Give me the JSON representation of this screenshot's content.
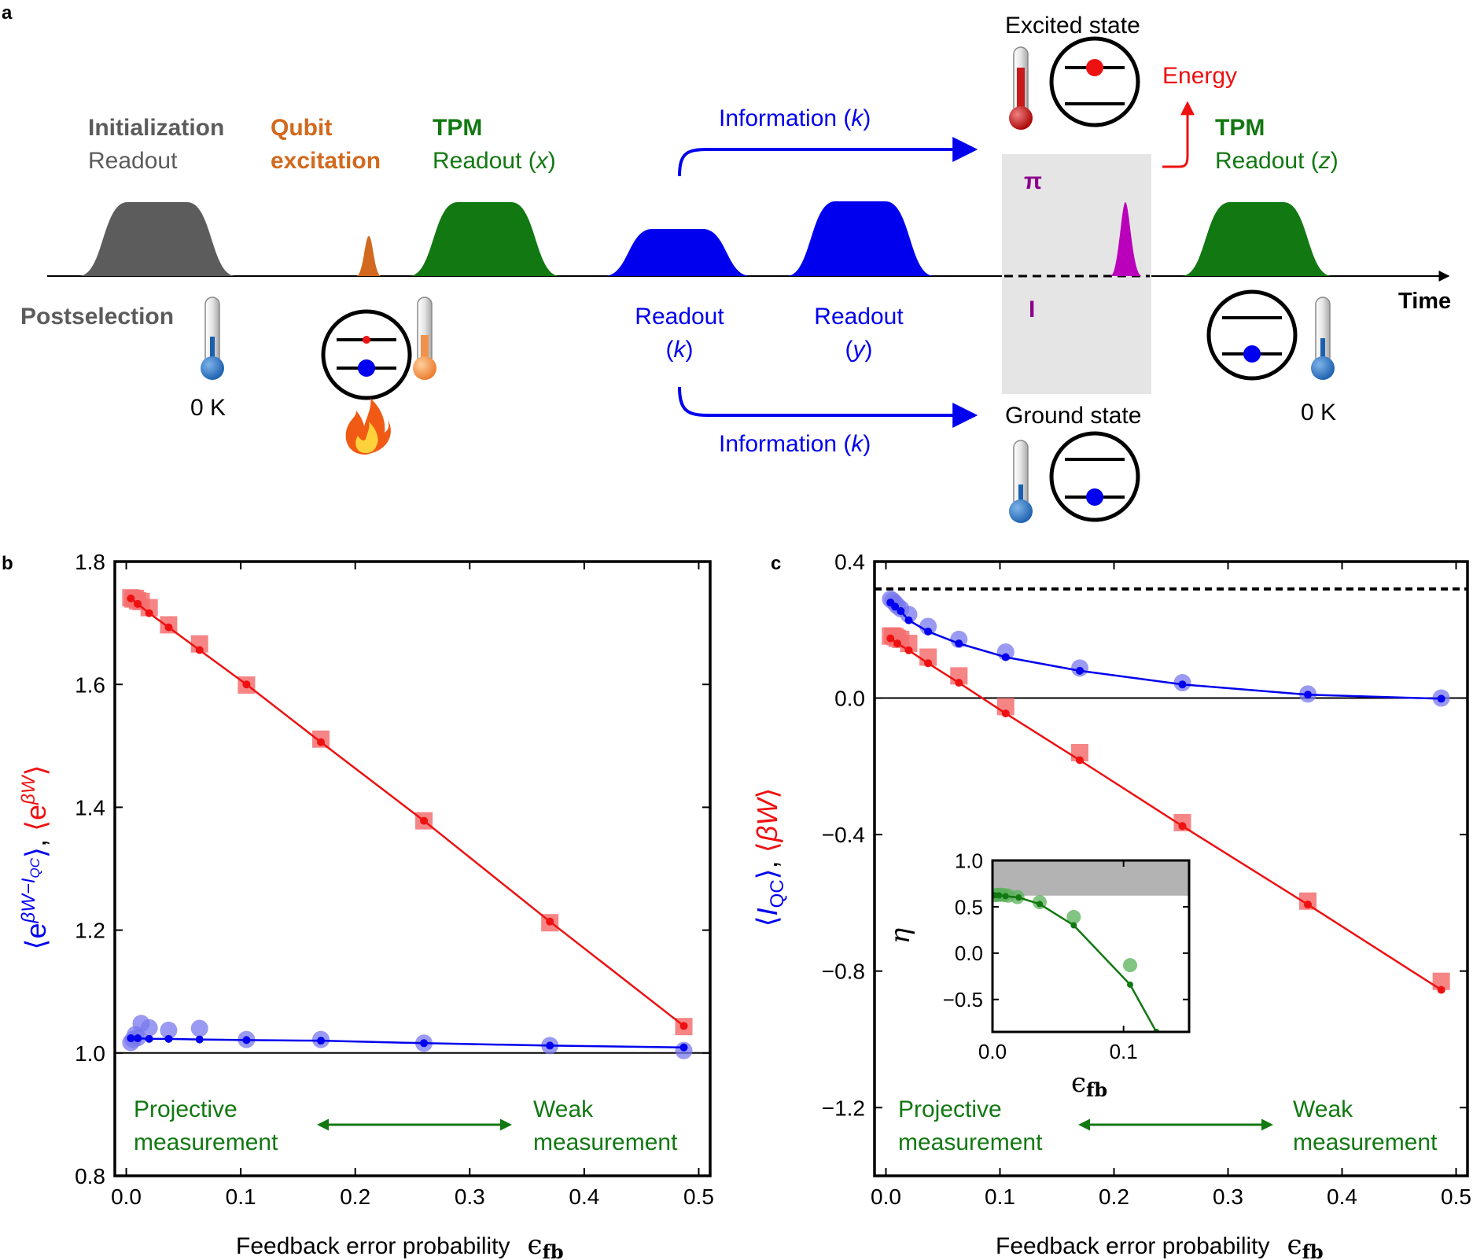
{
  "panel_labels": {
    "a": "a",
    "b": "b",
    "c": "c"
  },
  "colors": {
    "gray": "#5c5c5c",
    "orange": "#d2691e",
    "green": "#127812",
    "blue": "#0000ee",
    "red": "#ee1111",
    "purple": "#8b008b",
    "magenta": "#bb00bb",
    "red_marker": "#f47070",
    "blue_marker": "#7878ee",
    "green_marker": "#58b058"
  },
  "schematic": {
    "init": {
      "bold": "Initialization",
      "sub": "Readout"
    },
    "excite": {
      "line1": "Qubit",
      "line2": "excitation"
    },
    "tpm1": {
      "bold": "TPM",
      "sub": "Readout ",
      "var": "x"
    },
    "tpm2": {
      "bold": "TPM",
      "sub": "Readout ",
      "var": "z"
    },
    "info_top": {
      "text": "Information ",
      "var": "k"
    },
    "info_bottom": {
      "text": "Information ",
      "var": "k"
    },
    "readout_k": {
      "line1": "Readout",
      "var": "k"
    },
    "readout_y": {
      "line1": "Readout",
      "var": "y"
    },
    "excited_state": "Excited state",
    "ground_state": "Ground state",
    "energy": "Energy",
    "pi": "π",
    "identity": "I",
    "time": "Time",
    "postselection": "Postselection",
    "temp_left": "0 K",
    "temp_right": "0 K"
  },
  "chart_data": [
    {
      "id": "b",
      "type": "scatter",
      "xlabel": "Feedback error probability",
      "xlabel_symbol": "ϵ",
      "xlabel_sub": "fb",
      "ylabel": "⟨e^{βW−I_QC}⟩, ⟨e^{βW}⟩",
      "xlim": [
        -0.01,
        0.51
      ],
      "ylim": [
        0.8,
        1.8
      ],
      "xticks": [
        0.0,
        0.1,
        0.2,
        0.3,
        0.4,
        0.5
      ],
      "xtick_labels": [
        "0.0",
        "0.1",
        "0.2",
        "0.3",
        "0.4",
        "0.5"
      ],
      "yticks": [
        0.8,
        1.0,
        1.2,
        1.4,
        1.6,
        1.8
      ],
      "ytick_labels": [
        "0.8",
        "1.0",
        "1.2",
        "1.4",
        "1.6",
        "1.8"
      ],
      "hline": 1.0,
      "annotations": {
        "left1": "Projective",
        "left2": "measurement",
        "right1": "Weak",
        "right2": "measurement"
      },
      "series": [
        {
          "name": "⟨e^{βW}⟩ experiment",
          "color": "red",
          "marker": "square",
          "x": [
            0.004,
            0.006,
            0.008,
            0.01,
            0.013,
            0.02,
            0.037,
            0.064,
            0.105,
            0.17,
            0.26,
            0.37,
            0.487
          ],
          "y": [
            1.741,
            1.739,
            1.74,
            1.736,
            1.735,
            1.725,
            1.697,
            1.666,
            1.599,
            1.511,
            1.378,
            1.212,
            1.043
          ]
        },
        {
          "name": "⟨e^{βW}⟩ theory",
          "color": "red",
          "marker": "line-dot",
          "x": [
            0.004,
            0.01,
            0.02,
            0.037,
            0.064,
            0.105,
            0.17,
            0.26,
            0.37,
            0.487
          ],
          "y": [
            1.74,
            1.731,
            1.716,
            1.693,
            1.656,
            1.6,
            1.506,
            1.378,
            1.214,
            1.044
          ]
        },
        {
          "name": "⟨e^{βW−I_QC}⟩ experiment",
          "color": "blue",
          "marker": "circle",
          "x": [
            0.004,
            0.006,
            0.008,
            0.01,
            0.013,
            0.02,
            0.037,
            0.064,
            0.105,
            0.17,
            0.26,
            0.37,
            0.487
          ],
          "y": [
            1.017,
            1.022,
            1.03,
            1.025,
            1.048,
            1.041,
            1.037,
            1.04,
            1.022,
            1.022,
            1.016,
            1.012,
            1.004
          ]
        },
        {
          "name": "⟨e^{βW−I_QC}⟩ theory",
          "color": "blue",
          "marker": "line-dot",
          "x": [
            0.004,
            0.01,
            0.02,
            0.037,
            0.064,
            0.105,
            0.17,
            0.26,
            0.37,
            0.487
          ],
          "y": [
            1.024,
            1.024,
            1.023,
            1.023,
            1.022,
            1.021,
            1.02,
            1.016,
            1.012,
            1.009
          ]
        }
      ]
    },
    {
      "id": "c",
      "type": "scatter",
      "xlabel": "Feedback error probability",
      "xlabel_symbol": "ϵ",
      "xlabel_sub": "fb",
      "ylabel": "⟨I_QC⟩, ⟨βW⟩",
      "xlim": [
        -0.01,
        0.51
      ],
      "ylim": [
        -1.4,
        0.4
      ],
      "xticks": [
        0.0,
        0.1,
        0.2,
        0.3,
        0.4,
        0.5
      ],
      "xtick_labels": [
        "0.0",
        "0.1",
        "0.2",
        "0.3",
        "0.4",
        "0.5"
      ],
      "yticks": [
        0.4,
        0.0,
        -0.4,
        -0.8,
        -1.2
      ],
      "ytick_labels": [
        "0.4",
        "0.0",
        "−0.4",
        "−0.8",
        "−1.2"
      ],
      "hline": 0.0,
      "dashed_hline": 0.32,
      "annotations": {
        "left1": "Projective",
        "left2": "measurement",
        "right1": "Weak",
        "right2": "measurement"
      },
      "series": [
        {
          "name": "⟨βW⟩ experiment",
          "color": "red",
          "marker": "square",
          "x": [
            0.004,
            0.006,
            0.008,
            0.01,
            0.013,
            0.02,
            0.037,
            0.064,
            0.105,
            0.17,
            0.26,
            0.37,
            0.487
          ],
          "y": [
            0.182,
            0.182,
            0.18,
            0.175,
            0.172,
            0.16,
            0.12,
            0.065,
            -0.025,
            -0.16,
            -0.365,
            -0.595,
            -0.83
          ]
        },
        {
          "name": "⟨βW⟩ theory",
          "color": "red",
          "marker": "line-dot",
          "x": [
            0.004,
            0.01,
            0.02,
            0.037,
            0.064,
            0.105,
            0.17,
            0.26,
            0.37,
            0.487
          ],
          "y": [
            0.175,
            0.16,
            0.14,
            0.102,
            0.045,
            -0.045,
            -0.182,
            -0.375,
            -0.605,
            -0.855
          ]
        },
        {
          "name": "⟨I_QC⟩ experiment",
          "color": "blue",
          "marker": "circle",
          "x": [
            0.004,
            0.006,
            0.008,
            0.01,
            0.013,
            0.02,
            0.037,
            0.064,
            0.105,
            0.17,
            0.26,
            0.37,
            0.487
          ],
          "y": [
            0.29,
            0.285,
            0.278,
            0.27,
            0.262,
            0.245,
            0.21,
            0.172,
            0.135,
            0.088,
            0.045,
            0.012,
            0.0
          ]
        },
        {
          "name": "⟨I_QC⟩ theory",
          "color": "blue",
          "marker": "line-dot",
          "x": [
            0.004,
            0.008,
            0.013,
            0.02,
            0.037,
            0.064,
            0.105,
            0.17,
            0.26,
            0.37,
            0.487
          ],
          "y": [
            0.28,
            0.268,
            0.255,
            0.228,
            0.195,
            0.16,
            0.12,
            0.08,
            0.04,
            0.01,
            -0.002
          ]
        }
      ],
      "inset": {
        "type": "scatter",
        "xlabel_symbol": "ϵ",
        "xlabel_sub": "fb",
        "ylabel": "η",
        "xlim": [
          0.0,
          0.15
        ],
        "ylim": [
          -0.85,
          1.0
        ],
        "shaded_range": [
          0.62,
          1.0
        ],
        "xticks": [
          0.0,
          0.1
        ],
        "xtick_labels": [
          "0.0",
          "0.1"
        ],
        "yticks": [
          1.0,
          0.5,
          0.0,
          -0.5
        ],
        "ytick_labels": [
          "1.0",
          "0.5",
          "0.0",
          "−0.5"
        ],
        "series": [
          {
            "name": "η experiment",
            "color": "green",
            "marker": "circle",
            "x": [
              0.002,
              0.004,
              0.006,
              0.009,
              0.012,
              0.019,
              0.036,
              0.062,
              0.105
            ],
            "y": [
              0.625,
              0.628,
              0.63,
              0.626,
              0.62,
              0.605,
              0.55,
              0.39,
              -0.13
            ]
          },
          {
            "name": "η theory",
            "color": "green",
            "marker": "line-dot",
            "x": [
              0.002,
              0.005,
              0.01,
              0.02,
              0.036,
              0.062,
              0.105,
              0.125
            ],
            "y": [
              0.625,
              0.623,
              0.615,
              0.6,
              0.53,
              0.3,
              -0.34,
              -0.85
            ]
          }
        ]
      }
    }
  ]
}
